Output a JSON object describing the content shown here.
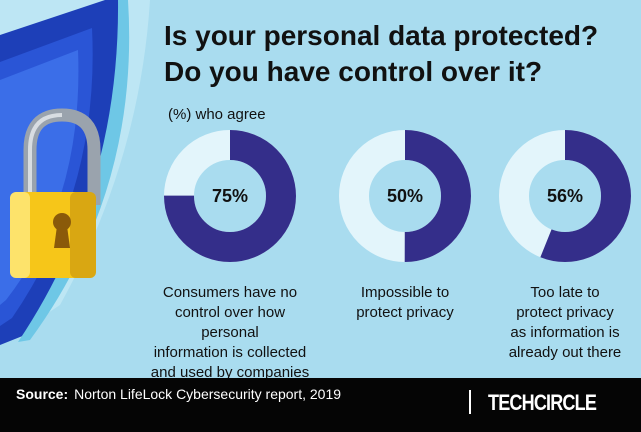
{
  "title_lines": [
    "Is your personal data protected?",
    "Do you have control over it?"
  ],
  "subtitle": "(%) who agree",
  "colors": {
    "filled": "#342e8a",
    "remaining": "#e3f5fb",
    "background": "#a9dcef"
  },
  "illustration": [
    "shield-icon",
    "padlock-icon"
  ],
  "chart_data": [
    {
      "type": "pie",
      "value": 75,
      "label": "75%",
      "caption": [
        "Consumers have no",
        "control over how personal",
        "information is collected",
        "and used by companies"
      ]
    },
    {
      "type": "pie",
      "value": 50,
      "label": "50%",
      "caption": [
        "Impossible to",
        "protect privacy"
      ]
    },
    {
      "type": "pie",
      "value": 56,
      "label": "56%",
      "caption": [
        "Too late to",
        "protect privacy",
        "as information is",
        "already out there"
      ]
    }
  ],
  "footer": {
    "source_label": "Source:",
    "source_text": "Norton LifeLock Cybersecurity report, 2019",
    "brand": "TECHCIRCLE"
  }
}
